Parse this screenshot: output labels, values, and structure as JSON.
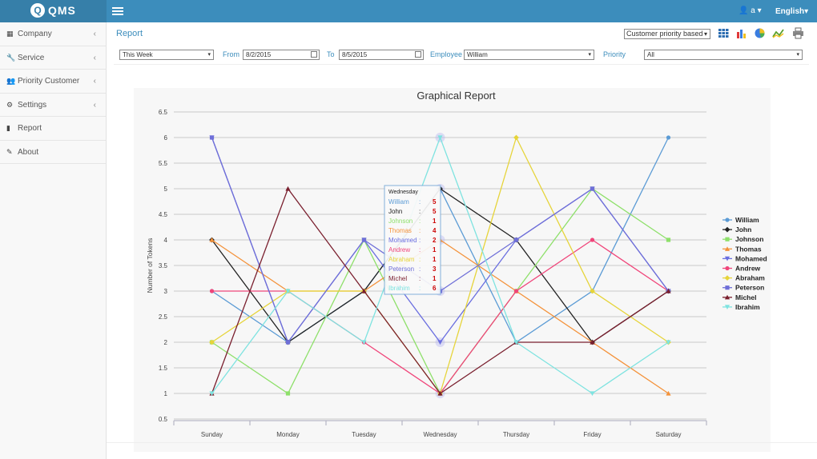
{
  "app": {
    "logo_text": "QMS",
    "user": "a",
    "language": "English"
  },
  "sidebar": {
    "items": [
      {
        "label": "Company",
        "icon": "building-icon",
        "has_chevron": true
      },
      {
        "label": "Service",
        "icon": "wrench-icon",
        "has_chevron": true
      },
      {
        "label": "Priority Customer",
        "icon": "users-icon",
        "has_chevron": true
      },
      {
        "label": "Settings",
        "icon": "gear-icon",
        "has_chevron": true
      },
      {
        "label": "Report",
        "icon": "file-icon",
        "has_chevron": false
      },
      {
        "label": "About",
        "icon": "edit-icon",
        "has_chevron": false
      }
    ]
  },
  "header": {
    "title": "Report",
    "report_type": "Customer priority based"
  },
  "filters": {
    "period": "This Week",
    "from_label": "From",
    "from_value": "8/2/2015",
    "to_label": "To",
    "to_value": "8/5/2015",
    "employee_label": "Employee",
    "employee_value": "William",
    "priority_label": "Priority",
    "priority_value": "All"
  },
  "chart_data": {
    "type": "line",
    "title": "Graphical Report",
    "xlabel": "",
    "ylabel": "Number of Tokens",
    "ylim": [
      0.5,
      6.5
    ],
    "yticks": [
      "0.5",
      "1",
      "1.5",
      "2",
      "2.5",
      "3",
      "3.5",
      "4",
      "4.5",
      "5",
      "5.5",
      "6",
      "6.5"
    ],
    "categories": [
      "Sunday",
      "Monday",
      "Tuesday",
      "Wednesday",
      "Thursday",
      "Friday",
      "Saturday"
    ],
    "grid": true,
    "legend_position": "right",
    "series": [
      {
        "name": "William",
        "color": "#5b9bd5",
        "marker": "circle",
        "values": [
          3,
          2,
          3,
          5,
          2,
          3,
          6
        ]
      },
      {
        "name": "John",
        "color": "#222222",
        "marker": "diamond",
        "values": [
          4,
          2,
          3,
          5,
          4,
          2,
          3
        ]
      },
      {
        "name": "Johnson",
        "color": "#8ee06a",
        "marker": "square",
        "values": [
          2,
          1,
          4,
          1,
          3,
          5,
          4
        ]
      },
      {
        "name": "Thomas",
        "color": "#f4923a",
        "marker": "triangle",
        "values": [
          4,
          3,
          3,
          4,
          3,
          2,
          1
        ]
      },
      {
        "name": "Mohamed",
        "color": "#6a6ee0",
        "marker": "triangle-down",
        "values": [
          6,
          2,
          4,
          2,
          4,
          5,
          3
        ]
      },
      {
        "name": "Andrew",
        "color": "#f0457a",
        "marker": "circle",
        "values": [
          3,
          3,
          2,
          1,
          3,
          4,
          3
        ]
      },
      {
        "name": "Abraham",
        "color": "#e6d43a",
        "marker": "diamond",
        "values": [
          2,
          3,
          3,
          1,
          6,
          3,
          2
        ]
      },
      {
        "name": "Peterson",
        "color": "#6f6fd8",
        "marker": "square",
        "values": [
          6,
          2,
          4,
          3,
          4,
          5,
          3
        ]
      },
      {
        "name": "Michel",
        "color": "#7a1f2e",
        "marker": "triangle",
        "values": [
          1,
          5,
          3,
          1,
          2,
          2,
          3
        ]
      },
      {
        "name": "Ibrahim",
        "color": "#7ee3e0",
        "marker": "triangle-down",
        "values": [
          1,
          3,
          2,
          6,
          2,
          1,
          2
        ]
      }
    ],
    "tooltip": {
      "category": "Wednesday",
      "rows": [
        {
          "name": "William",
          "value": "5"
        },
        {
          "name": "John",
          "value": "5"
        },
        {
          "name": "Johnson",
          "value": "1"
        },
        {
          "name": "Thomas",
          "value": "4"
        },
        {
          "name": "Mohamed",
          "value": "2"
        },
        {
          "name": "Andrew",
          "value": "1"
        },
        {
          "name": "Abraham",
          "value": "1"
        },
        {
          "name": "Peterson",
          "value": "3"
        },
        {
          "name": "Michel",
          "value": "1"
        },
        {
          "name": "Ibrahim",
          "value": "6"
        }
      ]
    }
  }
}
